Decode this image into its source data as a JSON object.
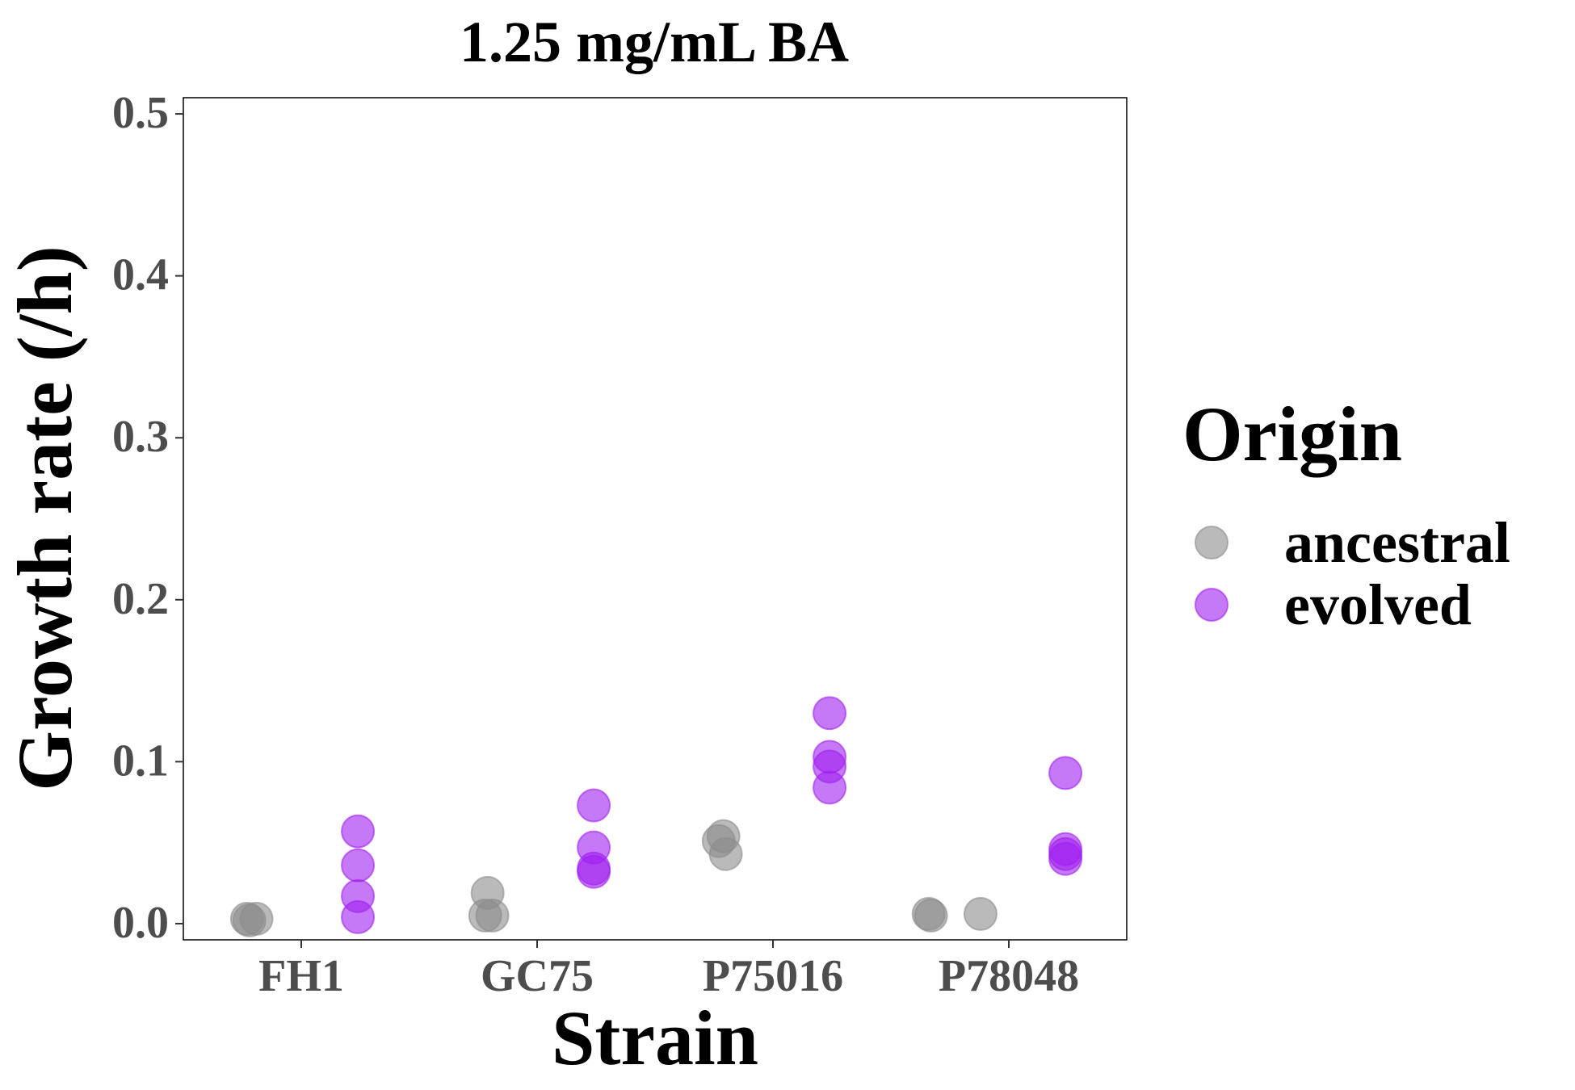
{
  "chart_data": {
    "type": "scatter",
    "title": "1.25 mg/mL BA",
    "xlabel": "Strain",
    "ylabel": "Growth rate (/h)",
    "categories": [
      "FH1",
      "GC75",
      "P75016",
      "P78048"
    ],
    "ylim": [
      -0.01,
      0.51
    ],
    "yticks": [
      0.0,
      0.1,
      0.2,
      0.3,
      0.4,
      0.5
    ],
    "ytick_labels": [
      "0.0",
      "0.1",
      "0.2",
      "0.3",
      "0.4",
      "0.5"
    ],
    "grid": false,
    "legend": {
      "title": "Origin",
      "position": "right",
      "entries": [
        "ancestral",
        "evolved"
      ]
    },
    "series": [
      {
        "name": "ancestral",
        "color": "#8c8c8c",
        "points": [
          {
            "category": "FH1",
            "offset": -0.23,
            "y": 0.003
          },
          {
            "category": "FH1",
            "offset": -0.22,
            "y": 0.002
          },
          {
            "category": "FH1",
            "offset": -0.19,
            "y": 0.003
          },
          {
            "category": "GC75",
            "offset": -0.22,
            "y": 0.005
          },
          {
            "category": "GC75",
            "offset": -0.21,
            "y": 0.019
          },
          {
            "category": "GC75",
            "offset": -0.19,
            "y": 0.005
          },
          {
            "category": "P75016",
            "offset": -0.23,
            "y": 0.051
          },
          {
            "category": "P75016",
            "offset": -0.21,
            "y": 0.054
          },
          {
            "category": "P75016",
            "offset": -0.2,
            "y": 0.043
          },
          {
            "category": "P78048",
            "offset": -0.34,
            "y": 0.006
          },
          {
            "category": "P78048",
            "offset": -0.33,
            "y": 0.005
          },
          {
            "category": "P78048",
            "offset": -0.12,
            "y": 0.006
          }
        ]
      },
      {
        "name": "evolved",
        "color": "#a020f0",
        "points": [
          {
            "category": "FH1",
            "offset": 0.24,
            "y": 0.057
          },
          {
            "category": "FH1",
            "offset": 0.24,
            "y": 0.036
          },
          {
            "category": "FH1",
            "offset": 0.24,
            "y": 0.017
          },
          {
            "category": "FH1",
            "offset": 0.24,
            "y": 0.004
          },
          {
            "category": "GC75",
            "offset": 0.24,
            "y": 0.073
          },
          {
            "category": "GC75",
            "offset": 0.24,
            "y": 0.047
          },
          {
            "category": "GC75",
            "offset": 0.24,
            "y": 0.034
          },
          {
            "category": "GC75",
            "offset": 0.24,
            "y": 0.032
          },
          {
            "category": "P75016",
            "offset": 0.24,
            "y": 0.13
          },
          {
            "category": "P75016",
            "offset": 0.24,
            "y": 0.103
          },
          {
            "category": "P75016",
            "offset": 0.24,
            "y": 0.097
          },
          {
            "category": "P75016",
            "offset": 0.24,
            "y": 0.084
          },
          {
            "category": "P78048",
            "offset": 0.24,
            "y": 0.093
          },
          {
            "category": "P78048",
            "offset": 0.24,
            "y": 0.046
          },
          {
            "category": "P78048",
            "offset": 0.24,
            "y": 0.043
          },
          {
            "category": "P78048",
            "offset": 0.24,
            "y": 0.04
          }
        ]
      }
    ]
  }
}
